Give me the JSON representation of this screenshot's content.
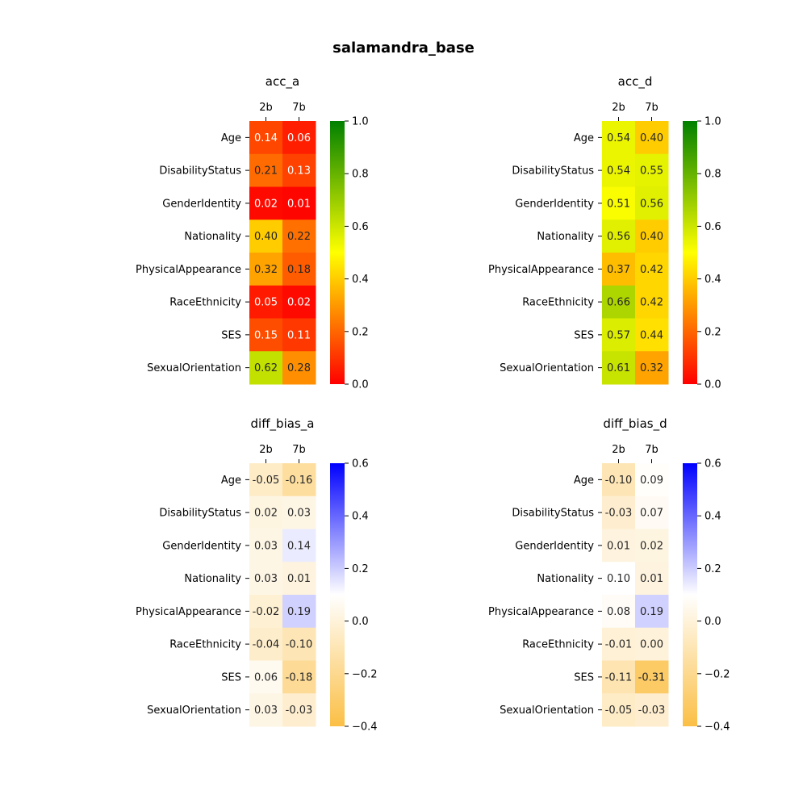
{
  "figure_title": "salamandra_base",
  "chart_data": [
    {
      "type": "heatmap",
      "title": "acc_a",
      "x": [
        "2b",
        "7b"
      ],
      "y": [
        "Age",
        "DisabilityStatus",
        "GenderIdentity",
        "Nationality",
        "PhysicalAppearance",
        "RaceEthnicity",
        "SES",
        "SexualOrientation"
      ],
      "values": [
        [
          0.14,
          0.06
        ],
        [
          0.21,
          0.13
        ],
        [
          0.02,
          0.01
        ],
        [
          0.4,
          0.22
        ],
        [
          0.32,
          0.18
        ],
        [
          0.05,
          0.02
        ],
        [
          0.15,
          0.11
        ],
        [
          0.62,
          0.28
        ]
      ],
      "vmin": 0.0,
      "vmax": 1.0,
      "colormap": [
        "#ff0000",
        "#ffff00",
        "#008000"
      ],
      "colorbar_ticks": [
        "0.0",
        "0.2",
        "0.4",
        "0.6",
        "0.8",
        "1.0"
      ]
    },
    {
      "type": "heatmap",
      "title": "acc_d",
      "x": [
        "2b",
        "7b"
      ],
      "y": [
        "Age",
        "DisabilityStatus",
        "GenderIdentity",
        "Nationality",
        "PhysicalAppearance",
        "RaceEthnicity",
        "SES",
        "SexualOrientation"
      ],
      "values": [
        [
          0.54,
          0.4
        ],
        [
          0.54,
          0.55
        ],
        [
          0.51,
          0.56
        ],
        [
          0.56,
          0.4
        ],
        [
          0.37,
          0.42
        ],
        [
          0.66,
          0.42
        ],
        [
          0.57,
          0.44
        ],
        [
          0.61,
          0.32
        ]
      ],
      "vmin": 0.0,
      "vmax": 1.0,
      "colormap": [
        "#ff0000",
        "#ffff00",
        "#008000"
      ],
      "colorbar_ticks": [
        "0.0",
        "0.2",
        "0.4",
        "0.6",
        "0.8",
        "1.0"
      ]
    },
    {
      "type": "heatmap",
      "title": "diff_bias_a",
      "x": [
        "2b",
        "7b"
      ],
      "y": [
        "Age",
        "DisabilityStatus",
        "GenderIdentity",
        "Nationality",
        "PhysicalAppearance",
        "RaceEthnicity",
        "SES",
        "SexualOrientation"
      ],
      "values": [
        [
          -0.05,
          -0.16
        ],
        [
          0.02,
          0.03
        ],
        [
          0.03,
          0.14
        ],
        [
          0.03,
          0.01
        ],
        [
          -0.02,
          0.19
        ],
        [
          -0.04,
          -0.1
        ],
        [
          0.06,
          -0.18
        ],
        [
          0.03,
          -0.03
        ]
      ],
      "vmin": -0.4,
      "vmax": 0.6,
      "colormap": [
        "#fbbf45",
        "#ffffff",
        "#0000ff"
      ],
      "colorbar_ticks": [
        "−0.4",
        "−0.2",
        "0.0",
        "0.2",
        "0.4",
        "0.6"
      ]
    },
    {
      "type": "heatmap",
      "title": "diff_bias_d",
      "x": [
        "2b",
        "7b"
      ],
      "y": [
        "Age",
        "DisabilityStatus",
        "GenderIdentity",
        "Nationality",
        "PhysicalAppearance",
        "RaceEthnicity",
        "SES",
        "SexualOrientation"
      ],
      "values": [
        [
          -0.1,
          0.09
        ],
        [
          -0.03,
          0.07
        ],
        [
          0.01,
          0.02
        ],
        [
          0.1,
          0.01
        ],
        [
          0.08,
          0.19
        ],
        [
          -0.01,
          0.0
        ],
        [
          -0.11,
          -0.31
        ],
        [
          -0.05,
          -0.03
        ]
      ],
      "vmin": -0.4,
      "vmax": 0.6,
      "colormap": [
        "#fbbf45",
        "#ffffff",
        "#0000ff"
      ],
      "colorbar_ticks": [
        "−0.4",
        "−0.2",
        "0.0",
        "0.2",
        "0.4",
        "0.6"
      ]
    }
  ]
}
